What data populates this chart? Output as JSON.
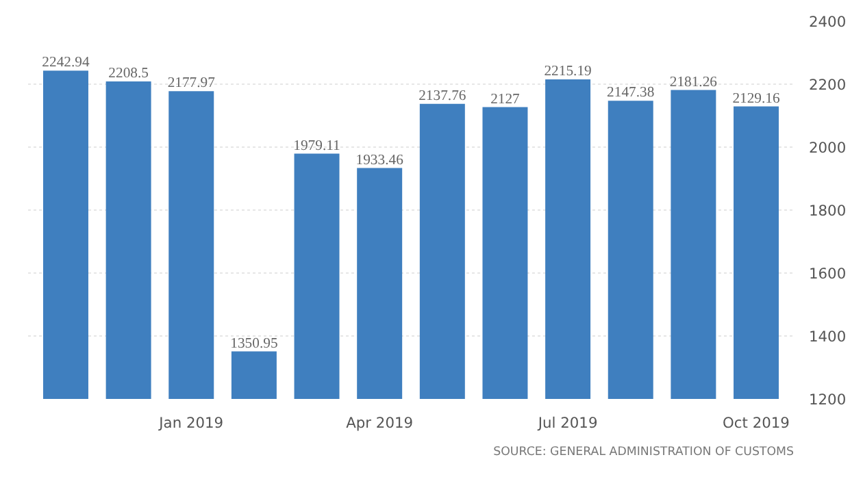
{
  "chart_data": {
    "type": "bar",
    "categories": [
      null,
      null,
      "Jan 2019",
      null,
      null,
      "Apr 2019",
      null,
      null,
      "Jul 2019",
      null,
      null,
      "Oct 2019"
    ],
    "values": [
      2242.94,
      2208.5,
      2177.97,
      1350.95,
      1979.11,
      1933.46,
      2137.76,
      2127,
      2215.19,
      2147.38,
      2181.26,
      2129.16
    ],
    "color": "#3f7fbf",
    "ylim": [
      1200,
      2400
    ],
    "yticks": [
      1200,
      1400,
      1600,
      1800,
      2000,
      2200,
      2400
    ],
    "grid": "y",
    "data_labels": true,
    "annotations": [
      "SOURCE: GENERAL ADMINISTRATION OF CUSTOMS"
    ]
  }
}
